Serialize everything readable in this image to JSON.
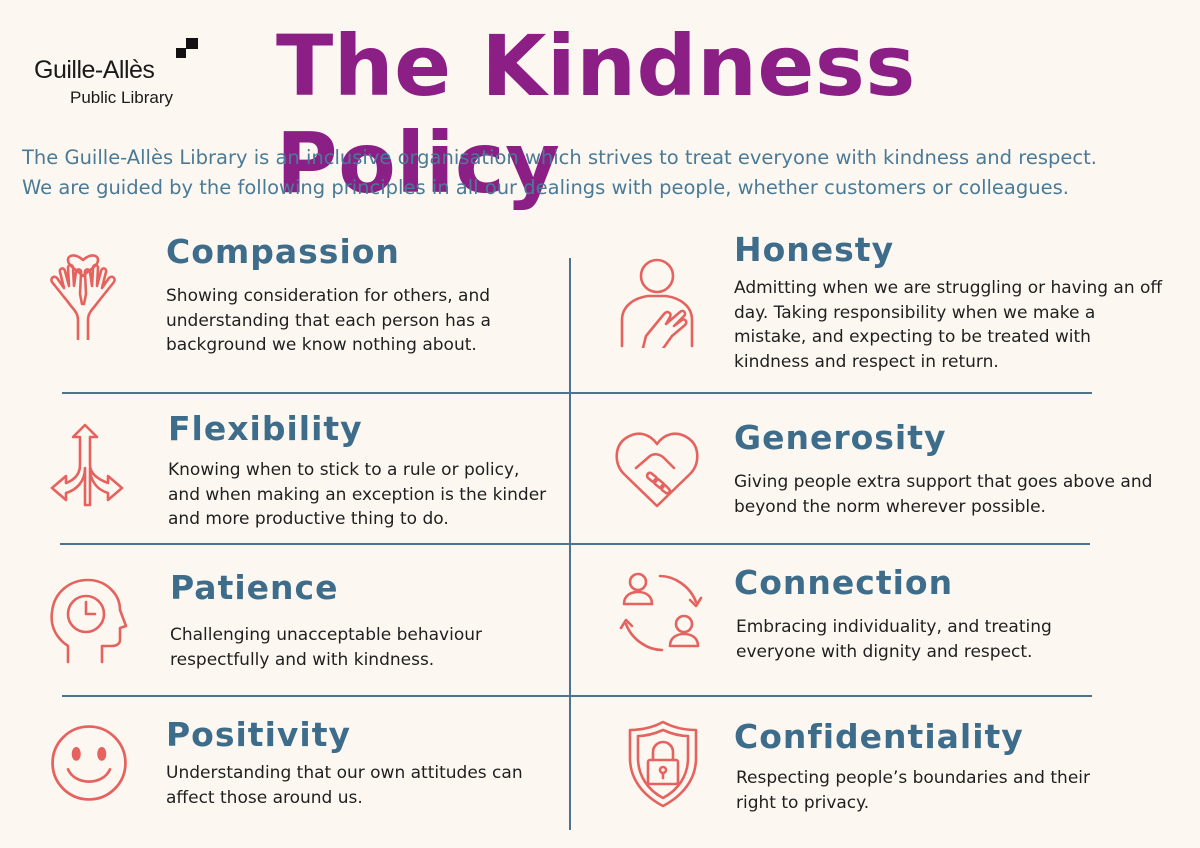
{
  "logo": {
    "name": "Guille-Allès",
    "subtitle": "Public Library"
  },
  "title": "The Kindness Policy",
  "intro": [
    "The Guille-Allès Library is an inclusive organisation which strives to treat everyone with kindness and respect.",
    "We are guided by the following principles in all our dealings with people,  whether customers or colleagues."
  ],
  "colors": {
    "title": "#8b1f86",
    "heading": "#3e6c8b",
    "intro": "#4a7a96",
    "icon": "#e5625e",
    "line": "#4d7390",
    "background": "#fcf8f1"
  },
  "principles": {
    "compassion": {
      "icon": "hands-heart-icon",
      "title": "Compassion",
      "description": "Showing consideration for others, and understanding that each person has a background we know nothing about."
    },
    "honesty": {
      "icon": "hand-on-heart-icon",
      "title": "Honesty",
      "description": "Admitting when we are struggling or having an off day. Taking responsibility when we make a mistake, and expecting to be treated with kindness and respect in return."
    },
    "flexibility": {
      "icon": "split-arrows-icon",
      "title": "Flexibility",
      "description": "Knowing when to stick to a rule or policy, and when making an exception is the kinder and more productive thing to do."
    },
    "generosity": {
      "icon": "heart-handshake-icon",
      "title": "Generosity",
      "description": "Giving people extra support that goes above and beyond the norm wherever possible."
    },
    "patience": {
      "icon": "head-clock-icon",
      "title": "Patience",
      "description": "Challenging unacceptable behaviour respectfully and with kindness."
    },
    "connection": {
      "icon": "people-cycle-icon",
      "title": "Connection",
      "description": "Embracing individuality, and treating everyone with dignity and respect."
    },
    "positivity": {
      "icon": "smiley-face-icon",
      "title": "Positivity",
      "description": "Understanding that our own attitudes can affect those around us."
    },
    "confidentiality": {
      "icon": "shield-lock-icon",
      "title": "Confidentiality",
      "description": "Respecting people’s boundaries and their right to privacy."
    }
  }
}
